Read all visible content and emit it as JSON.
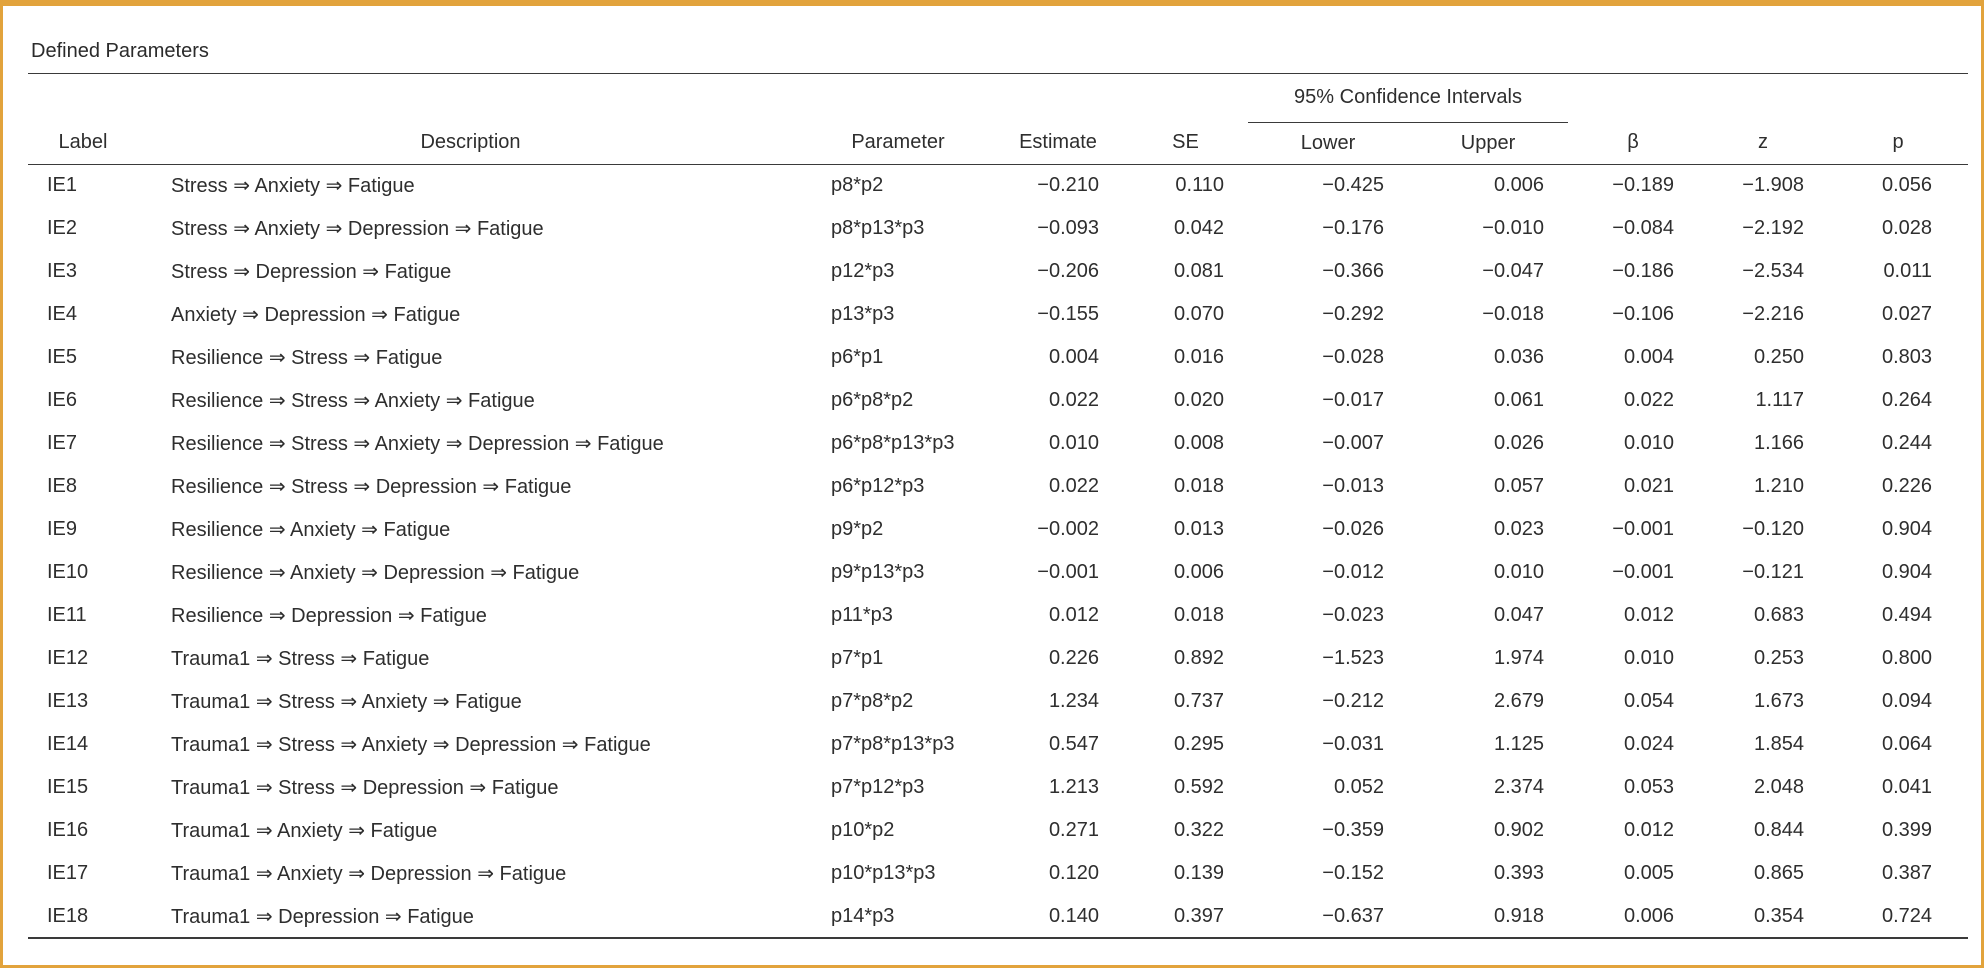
{
  "panel": {
    "title": "Defined Parameters"
  },
  "table": {
    "spanner": "95% Confidence Intervals",
    "columns": [
      "Label",
      "Description",
      "Parameter",
      "Estimate",
      "SE",
      "Lower",
      "Upper",
      "β",
      "z",
      "p"
    ],
    "rows": [
      {
        "label": "IE1",
        "description": "Stress ⇒ Anxiety ⇒ Fatigue",
        "parameter": "p8*p2",
        "estimate": "−0.210",
        "se": "0.110",
        "lower": "−0.425",
        "upper": "0.006",
        "beta": "−0.189",
        "z": "−1.908",
        "p": "0.056"
      },
      {
        "label": "IE2",
        "description": "Stress ⇒ Anxiety ⇒ Depression ⇒ Fatigue",
        "parameter": "p8*p13*p3",
        "estimate": "−0.093",
        "se": "0.042",
        "lower": "−0.176",
        "upper": "−0.010",
        "beta": "−0.084",
        "z": "−2.192",
        "p": "0.028"
      },
      {
        "label": "IE3",
        "description": "Stress ⇒ Depression ⇒ Fatigue",
        "parameter": "p12*p3",
        "estimate": "−0.206",
        "se": "0.081",
        "lower": "−0.366",
        "upper": "−0.047",
        "beta": "−0.186",
        "z": "−2.534",
        "p": "0.011"
      },
      {
        "label": "IE4",
        "description": "Anxiety ⇒ Depression ⇒ Fatigue",
        "parameter": "p13*p3",
        "estimate": "−0.155",
        "se": "0.070",
        "lower": "−0.292",
        "upper": "−0.018",
        "beta": "−0.106",
        "z": "−2.216",
        "p": "0.027"
      },
      {
        "label": "IE5",
        "description": "Resilience ⇒ Stress ⇒ Fatigue",
        "parameter": "p6*p1",
        "estimate": "0.004",
        "se": "0.016",
        "lower": "−0.028",
        "upper": "0.036",
        "beta": "0.004",
        "z": "0.250",
        "p": "0.803"
      },
      {
        "label": "IE6",
        "description": "Resilience ⇒ Stress ⇒ Anxiety ⇒ Fatigue",
        "parameter": "p6*p8*p2",
        "estimate": "0.022",
        "se": "0.020",
        "lower": "−0.017",
        "upper": "0.061",
        "beta": "0.022",
        "z": "1.117",
        "p": "0.264"
      },
      {
        "label": "IE7",
        "description": "Resilience ⇒ Stress ⇒ Anxiety ⇒ Depression ⇒ Fatigue",
        "parameter": "p6*p8*p13*p3",
        "estimate": "0.010",
        "se": "0.008",
        "lower": "−0.007",
        "upper": "0.026",
        "beta": "0.010",
        "z": "1.166",
        "p": "0.244"
      },
      {
        "label": "IE8",
        "description": "Resilience ⇒ Stress ⇒ Depression ⇒ Fatigue",
        "parameter": "p6*p12*p3",
        "estimate": "0.022",
        "se": "0.018",
        "lower": "−0.013",
        "upper": "0.057",
        "beta": "0.021",
        "z": "1.210",
        "p": "0.226"
      },
      {
        "label": "IE9",
        "description": "Resilience ⇒ Anxiety ⇒ Fatigue",
        "parameter": "p9*p2",
        "estimate": "−0.002",
        "se": "0.013",
        "lower": "−0.026",
        "upper": "0.023",
        "beta": "−0.001",
        "z": "−0.120",
        "p": "0.904"
      },
      {
        "label": "IE10",
        "description": "Resilience ⇒ Anxiety ⇒ Depression ⇒ Fatigue",
        "parameter": "p9*p13*p3",
        "estimate": "−0.001",
        "se": "0.006",
        "lower": "−0.012",
        "upper": "0.010",
        "beta": "−0.001",
        "z": "−0.121",
        "p": "0.904"
      },
      {
        "label": "IE11",
        "description": "Resilience ⇒ Depression ⇒ Fatigue",
        "parameter": "p11*p3",
        "estimate": "0.012",
        "se": "0.018",
        "lower": "−0.023",
        "upper": "0.047",
        "beta": "0.012",
        "z": "0.683",
        "p": "0.494"
      },
      {
        "label": "IE12",
        "description": "Trauma1 ⇒ Stress ⇒ Fatigue",
        "parameter": "p7*p1",
        "estimate": "0.226",
        "se": "0.892",
        "lower": "−1.523",
        "upper": "1.974",
        "beta": "0.010",
        "z": "0.253",
        "p": "0.800"
      },
      {
        "label": "IE13",
        "description": "Trauma1 ⇒ Stress ⇒ Anxiety ⇒ Fatigue",
        "parameter": "p7*p8*p2",
        "estimate": "1.234",
        "se": "0.737",
        "lower": "−0.212",
        "upper": "2.679",
        "beta": "0.054",
        "z": "1.673",
        "p": "0.094"
      },
      {
        "label": "IE14",
        "description": "Trauma1 ⇒ Stress ⇒ Anxiety ⇒ Depression ⇒ Fatigue",
        "parameter": "p7*p8*p13*p3",
        "estimate": "0.547",
        "se": "0.295",
        "lower": "−0.031",
        "upper": "1.125",
        "beta": "0.024",
        "z": "1.854",
        "p": "0.064"
      },
      {
        "label": "IE15",
        "description": "Trauma1 ⇒ Stress ⇒ Depression ⇒ Fatigue",
        "parameter": "p7*p12*p3",
        "estimate": "1.213",
        "se": "0.592",
        "lower": "0.052",
        "upper": "2.374",
        "beta": "0.053",
        "z": "2.048",
        "p": "0.041"
      },
      {
        "label": "IE16",
        "description": "Trauma1 ⇒ Anxiety ⇒ Fatigue",
        "parameter": "p10*p2",
        "estimate": "0.271",
        "se": "0.322",
        "lower": "−0.359",
        "upper": "0.902",
        "beta": "0.012",
        "z": "0.844",
        "p": "0.399"
      },
      {
        "label": "IE17",
        "description": "Trauma1 ⇒ Anxiety ⇒ Depression ⇒ Fatigue",
        "parameter": "p10*p13*p3",
        "estimate": "0.120",
        "se": "0.139",
        "lower": "−0.152",
        "upper": "0.393",
        "beta": "0.005",
        "z": "0.865",
        "p": "0.387"
      },
      {
        "label": "IE18",
        "description": "Trauma1 ⇒ Depression ⇒ Fatigue",
        "parameter": "p14*p3",
        "estimate": "0.140",
        "se": "0.397",
        "lower": "−0.637",
        "upper": "0.918",
        "beta": "0.006",
        "z": "0.354",
        "p": "0.724"
      }
    ]
  }
}
